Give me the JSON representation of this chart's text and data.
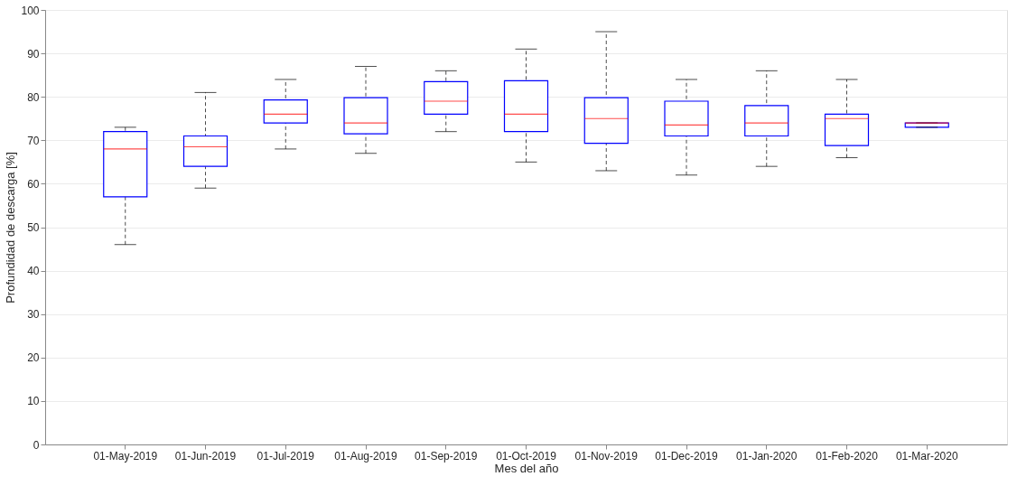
{
  "chart_data": {
    "type": "box",
    "xlabel": "Mes del año",
    "ylabel": "Profundidad de descarga [%]",
    "categories": [
      "01-May-2019",
      "01-Jun-2019",
      "01-Jul-2019",
      "01-Aug-2019",
      "01-Sep-2019",
      "01-Oct-2019",
      "01-Nov-2019",
      "01-Dec-2019",
      "01-Jan-2020",
      "01-Feb-2020",
      "01-Mar-2020"
    ],
    "boxes": [
      {
        "low": 46,
        "q1": 57,
        "median": 68,
        "q3": 72,
        "high": 73
      },
      {
        "low": 59,
        "q1": 64,
        "median": 68.5,
        "q3": 71,
        "high": 81
      },
      {
        "low": 68,
        "q1": 74,
        "median": 76,
        "q3": 79.3,
        "high": 84
      },
      {
        "low": 67,
        "q1": 71.5,
        "median": 74,
        "q3": 79.8,
        "high": 87
      },
      {
        "low": 72,
        "q1": 76,
        "median": 79,
        "q3": 83.5,
        "high": 86
      },
      {
        "low": 65,
        "q1": 72,
        "median": 76,
        "q3": 83.7,
        "high": 91
      },
      {
        "low": 63,
        "q1": 69.3,
        "median": 75,
        "q3": 79.8,
        "high": 95
      },
      {
        "low": 62,
        "q1": 71,
        "median": 73.5,
        "q3": 79,
        "high": 84
      },
      {
        "low": 64,
        "q1": 71,
        "median": 74,
        "q3": 78,
        "high": 86
      },
      {
        "low": 66,
        "q1": 68.8,
        "median": 75,
        "q3": 76,
        "high": 84
      },
      {
        "low": 73,
        "q1": 73,
        "median": 74,
        "q3": 74,
        "high": 74
      }
    ],
    "colors": [
      "#0000ff",
      "#0000ff",
      "#0000ff",
      "#0000ff",
      "#0000ff",
      "#0000ff",
      "#0000ff",
      "#0000ff",
      "#0000ff",
      "#0000ff",
      "#0000ff"
    ],
    "ylim": [
      0,
      100
    ],
    "yticks": [
      0,
      10,
      20,
      30,
      40,
      50,
      60,
      70,
      80,
      90,
      100
    ],
    "grid": "y",
    "line_style": "dashed"
  }
}
